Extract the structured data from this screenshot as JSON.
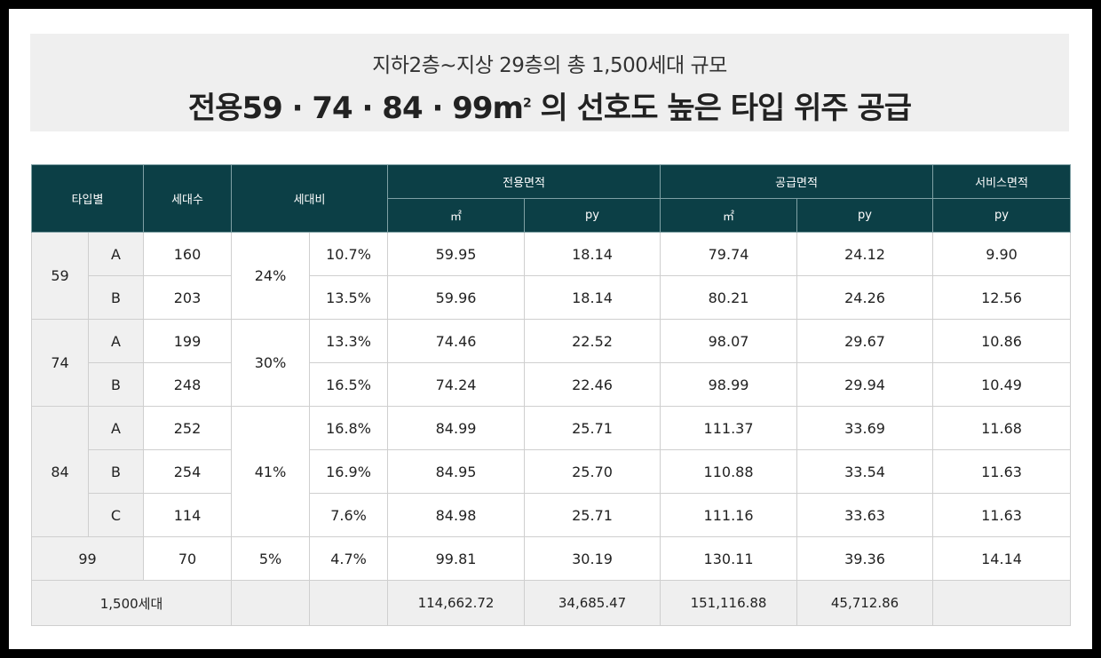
{
  "header": {
    "subtitle": "지하2층~지상 29층의 총 1,500세대 규모",
    "title_main": "전용59 · 74 · 84 · 99m",
    "title_sup": "2",
    "title_rest": " 의 선호도 높은 타입 위주 공급"
  },
  "table": {
    "headers": {
      "type": "타입별",
      "units": "세대수",
      "ratio": "세대비",
      "exclusive": "전용면적",
      "supply": "공급면적",
      "service": "서비스면적",
      "sqm": "㎡",
      "py": "py"
    },
    "groups": [
      {
        "type": "59",
        "group_ratio": "24%",
        "rows": [
          {
            "sub": "A",
            "units": "160",
            "ratio": "10.7%",
            "ex_m2": "59.95",
            "ex_py": "18.14",
            "sup_m2": "79.74",
            "sup_py": "24.12",
            "svc_py": "9.90"
          },
          {
            "sub": "B",
            "units": "203",
            "ratio": "13.5%",
            "ex_m2": "59.96",
            "ex_py": "18.14",
            "sup_m2": "80.21",
            "sup_py": "24.26",
            "svc_py": "12.56"
          }
        ]
      },
      {
        "type": "74",
        "group_ratio": "30%",
        "rows": [
          {
            "sub": "A",
            "units": "199",
            "ratio": "13.3%",
            "ex_m2": "74.46",
            "ex_py": "22.52",
            "sup_m2": "98.07",
            "sup_py": "29.67",
            "svc_py": "10.86"
          },
          {
            "sub": "B",
            "units": "248",
            "ratio": "16.5%",
            "ex_m2": "74.24",
            "ex_py": "22.46",
            "sup_m2": "98.99",
            "sup_py": "29.94",
            "svc_py": "10.49"
          }
        ]
      },
      {
        "type": "84",
        "group_ratio": "41%",
        "rows": [
          {
            "sub": "A",
            "units": "252",
            "ratio": "16.8%",
            "ex_m2": "84.99",
            "ex_py": "25.71",
            "sup_m2": "111.37",
            "sup_py": "33.69",
            "svc_py": "11.68"
          },
          {
            "sub": "B",
            "units": "254",
            "ratio": "16.9%",
            "ex_m2": "84.95",
            "ex_py": "25.70",
            "sup_m2": "110.88",
            "sup_py": "33.54",
            "svc_py": "11.63"
          },
          {
            "sub": "C",
            "units": "114",
            "ratio": "7.6%",
            "ex_m2": "84.98",
            "ex_py": "25.71",
            "sup_m2": "111.16",
            "sup_py": "33.63",
            "svc_py": "11.63"
          }
        ]
      }
    ],
    "single": {
      "type": "99",
      "units": "70",
      "group_ratio": "5%",
      "ratio": "4.7%",
      "ex_m2": "99.81",
      "ex_py": "30.19",
      "sup_m2": "130.11",
      "sup_py": "39.36",
      "svc_py": "14.14"
    },
    "total": {
      "label": "1,500세대",
      "ex_m2": "114,662.72",
      "ex_py": "34,685.47",
      "sup_m2": "151,116.88",
      "sup_py": "45,712.86"
    }
  }
}
